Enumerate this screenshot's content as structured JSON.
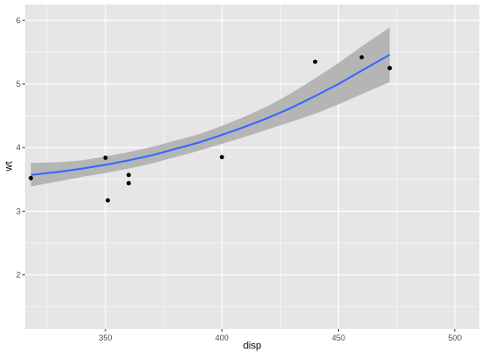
{
  "chart_data": {
    "type": "scatter",
    "xlabel": "disp",
    "ylabel": "wt",
    "xlim": [
      315.5,
      510.5
    ],
    "ylim": [
      1.15,
      6.25
    ],
    "grid": true,
    "x_ticks": [
      350,
      400,
      450,
      500
    ],
    "x_tick_labels": [
      "350",
      "400",
      "450",
      "500"
    ],
    "y_ticks": [
      2,
      3,
      4,
      5,
      6
    ],
    "y_tick_labels": [
      "2",
      "3",
      "4",
      "5",
      "6"
    ],
    "points": [
      {
        "x": 318,
        "y": 3.52
      },
      {
        "x": 350,
        "y": 3.84
      },
      {
        "x": 351,
        "y": 3.17
      },
      {
        "x": 360,
        "y": 3.57
      },
      {
        "x": 360,
        "y": 3.44
      },
      {
        "x": 400,
        "y": 3.85
      },
      {
        "x": 440,
        "y": 5.35
      },
      {
        "x": 460,
        "y": 5.42
      },
      {
        "x": 472,
        "y": 5.25
      }
    ],
    "smooth": {
      "x": [
        318,
        330,
        340,
        350,
        360,
        370,
        380,
        390,
        400,
        410,
        420,
        430,
        440,
        450,
        460,
        472
      ],
      "y": [
        3.57,
        3.62,
        3.67,
        3.73,
        3.8,
        3.88,
        3.98,
        4.08,
        4.2,
        4.33,
        4.47,
        4.63,
        4.81,
        5.0,
        5.21,
        5.46
      ],
      "lower": [
        3.39,
        3.47,
        3.54,
        3.6,
        3.67,
        3.75,
        3.85,
        3.95,
        4.06,
        4.17,
        4.29,
        4.41,
        4.53,
        4.68,
        4.84,
        5.03
      ],
      "upper": [
        3.76,
        3.77,
        3.8,
        3.86,
        3.93,
        4.01,
        4.11,
        4.21,
        4.34,
        4.49,
        4.66,
        4.86,
        5.09,
        5.33,
        5.59,
        5.89
      ]
    },
    "colors": {
      "panel": "#E6E6E6",
      "grid_major": "#FFFFFF",
      "point": "#000000",
      "line": "#3366FF",
      "ribbon": "#B5B5B5",
      "tick_text": "#4D4D4D",
      "axis_title": "#000000"
    }
  }
}
